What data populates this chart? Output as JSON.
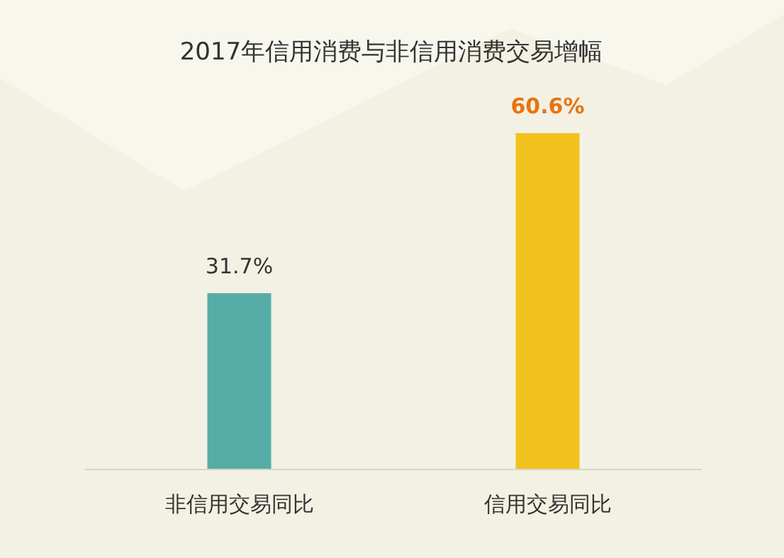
{
  "chart_data": {
    "type": "bar",
    "title": "2017年信用消费与非信用消费交易增幅",
    "categories": [
      "非信用交易同比",
      "信用交易同比"
    ],
    "values": [
      31.7,
      60.6
    ],
    "colors": [
      "#56ada8",
      "#f2c21f"
    ],
    "value_labels": [
      "31.7%",
      "60.6%"
    ]
  }
}
